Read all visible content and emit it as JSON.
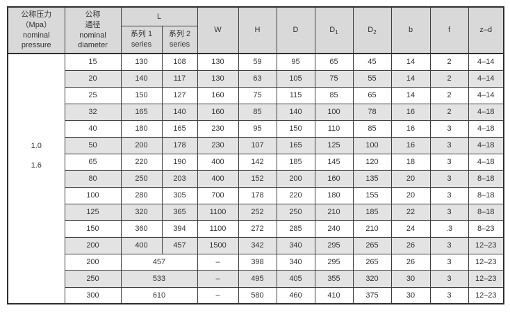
{
  "table": {
    "header": {
      "pressure_lines": [
        "公称压力",
        "（Mpa）",
        "nominal",
        "pressure"
      ],
      "diameter_lines": [
        "公称",
        "通径",
        "nominal",
        "diameter"
      ],
      "l_label": "L",
      "l_series": [
        {
          "line1": "系列 1",
          "line2": "series"
        },
        {
          "line1": "系列 2",
          "line2": "series"
        }
      ],
      "simple_cols": [
        {
          "label": "W"
        },
        {
          "label": "H"
        },
        {
          "label": "D"
        },
        {
          "label": "D",
          "sub": "1"
        },
        {
          "label": "D",
          "sub": "2"
        },
        {
          "label": "b"
        },
        {
          "label": "f"
        },
        {
          "label": "z–d"
        }
      ]
    },
    "pressure_values": [
      "1.0",
      "1.6"
    ],
    "rows": [
      {
        "dn": "15",
        "l1": "130",
        "l2": "108",
        "w": "130",
        "h": "59",
        "d": "95",
        "d1": "65",
        "d2": "45",
        "b": "14",
        "f": "2",
        "zd": "4–14"
      },
      {
        "dn": "20",
        "l1": "140",
        "l2": "117",
        "w": "130",
        "h": "63",
        "d": "105",
        "d1": "75",
        "d2": "55",
        "b": "14",
        "f": "2",
        "zd": "4–14"
      },
      {
        "dn": "25",
        "l1": "150",
        "l2": "127",
        "w": "160",
        "h": "75",
        "d": "115",
        "d1": "85",
        "d2": "65",
        "b": "14",
        "f": "2",
        "zd": "4–14"
      },
      {
        "dn": "32",
        "l1": "165",
        "l2": "140",
        "w": "160",
        "h": "85",
        "d": "140",
        "d1": "100",
        "d2": "78",
        "b": "16",
        "f": "2",
        "zd": "4–18"
      },
      {
        "dn": "40",
        "l1": "180",
        "l2": "165",
        "w": "230",
        "h": "95",
        "d": "150",
        "d1": "110",
        "d2": "85",
        "b": "16",
        "f": "3",
        "zd": "4–18"
      },
      {
        "dn": "50",
        "l1": "200",
        "l2": "178",
        "w": "230",
        "h": "107",
        "d": "165",
        "d1": "125",
        "d2": "100",
        "b": "16",
        "f": "3",
        "zd": "4–18"
      },
      {
        "dn": "65",
        "l1": "220",
        "l2": "190",
        "w": "400",
        "h": "142",
        "d": "185",
        "d1": "145",
        "d2": "120",
        "b": "18",
        "f": "3",
        "zd": "4–18"
      },
      {
        "dn": "80",
        "l1": "250",
        "l2": "203",
        "w": "400",
        "h": "152",
        "d": "200",
        "d1": "160",
        "d2": "135",
        "b": "20",
        "f": "3",
        "zd": "8–18"
      },
      {
        "dn": "100",
        "l1": "280",
        "l2": "305",
        "w": "700",
        "h": "178",
        "d": "220",
        "d1": "180",
        "d2": "155",
        "b": "20",
        "f": "3",
        "zd": "8–18"
      },
      {
        "dn": "125",
        "l1": "320",
        "l2": "365",
        "w": "1100",
        "h": "252",
        "d": "250",
        "d1": "210",
        "d2": "185",
        "b": "22",
        "f": "3",
        "zd": "8–18"
      },
      {
        "dn": "150",
        "l1": "360",
        "l2": "394",
        "w": "1100",
        "h": "272",
        "d": "285",
        "d1": "240",
        "d2": "210",
        "b": "24",
        "f": ".3",
        "zd": "8–23"
      },
      {
        "dn": "200",
        "l1": "400",
        "l2": "457",
        "w": "1500",
        "h": "342",
        "d": "340",
        "d1": "295",
        "d2": "265",
        "b": "26",
        "f": "3",
        "zd": "12–23"
      },
      {
        "dn": "200",
        "l_merged": "457",
        "w": "–",
        "h": "398",
        "d": "340",
        "d1": "295",
        "d2": "265",
        "b": "26",
        "f": "3",
        "zd": "12–23"
      },
      {
        "dn": "250",
        "l_merged": "533",
        "w": "–",
        "h": "495",
        "d": "405",
        "d1": "355",
        "d2": "320",
        "b": "30",
        "f": "3",
        "zd": "12–23"
      },
      {
        "dn": "300",
        "l_merged": "610",
        "w": "–",
        "h": "580",
        "d": "460",
        "d1": "410",
        "d2": "375",
        "b": "30",
        "f": "3",
        "zd": "12–23"
      }
    ],
    "colors": {
      "header_bg": "#d9d9d9",
      "stripe_bg": "#e3e3e3",
      "border": "#3d3d3d",
      "text": "#333333"
    }
  }
}
